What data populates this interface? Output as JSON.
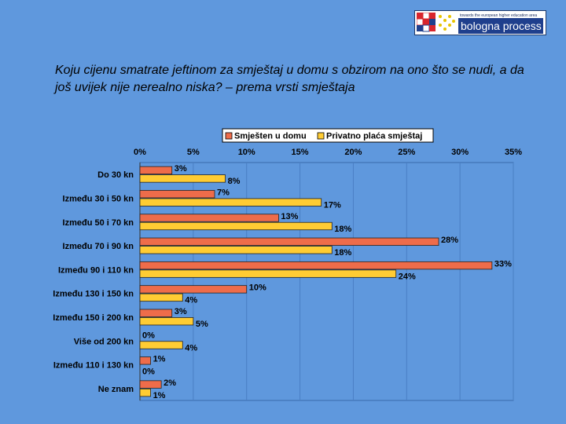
{
  "header": {
    "logo_small_text": "towards the european higher education area",
    "logo_text": "bologna process"
  },
  "colors": {
    "background": "#5f98dd",
    "series1": "#ee6c4a",
    "series2": "#ffcc33",
    "plot_background": "#5f98dd",
    "gridline": "#4a7fc4"
  },
  "chart_data": {
    "type": "bar",
    "orientation": "horizontal",
    "title": "Koju cijenu smatrate jeftinom za smještaj u domu s obzirom na ono što se nudi, a da još uvijek nije nerealno niska? – prema vrsti smještaja",
    "categories": [
      "Do 30 kn",
      "Između 30 i 50 kn",
      "Između 50 i 70 kn",
      "Između 70 i 90 kn",
      "Između 90 i 110 kn",
      "Između 130 i 150 kn",
      "Između 150 i 200 kn",
      "Više od 200 kn",
      "Između 110 i 130 kn",
      "Ne znam"
    ],
    "series": [
      {
        "name": "Smješten u domu",
        "values": [
          3,
          7,
          13,
          28,
          33,
          10,
          3,
          0,
          1,
          2
        ],
        "color": "#ee6c4a"
      },
      {
        "name": "Privatno plaća smještaj",
        "values": [
          8,
          17,
          18,
          18,
          24,
          4,
          5,
          4,
          0,
          1
        ],
        "color": "#ffcc33"
      }
    ],
    "xlim": [
      0,
      35
    ],
    "xticks": [
      0,
      5,
      10,
      15,
      20,
      25,
      30,
      35
    ],
    "tick_suffix": "%",
    "legend_position": "top",
    "grid": true
  }
}
